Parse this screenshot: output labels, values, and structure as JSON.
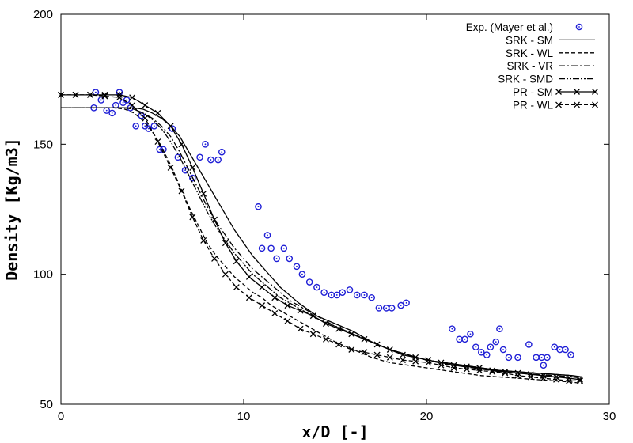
{
  "chart_data": {
    "type": "line",
    "xlabel": "x/D [-]",
    "ylabel": "Density [Kg/m3]",
    "xlim": [
      0,
      30
    ],
    "ylim": [
      50,
      200
    ],
    "x_ticks": [
      "0",
      "10",
      "20",
      "30"
    ],
    "y_ticks": [
      "50",
      "100",
      "150",
      "200"
    ],
    "grid": false,
    "legend_position": "top-right",
    "experimental": {
      "name": "Exp. (Mayer et al.)",
      "color": "#1f1fd6",
      "points": [
        [
          1.8,
          164
        ],
        [
          1.9,
          170
        ],
        [
          2.2,
          167
        ],
        [
          2.5,
          163
        ],
        [
          2.8,
          162
        ],
        [
          3.0,
          165
        ],
        [
          3.2,
          170
        ],
        [
          3.4,
          166
        ],
        [
          3.6,
          167
        ],
        [
          3.8,
          164
        ],
        [
          4.1,
          157
        ],
        [
          4.4,
          161
        ],
        [
          4.6,
          157
        ],
        [
          4.8,
          156
        ],
        [
          5.1,
          157
        ],
        [
          5.4,
          148
        ],
        [
          5.6,
          148
        ],
        [
          6.1,
          156
        ],
        [
          6.4,
          145
        ],
        [
          6.8,
          140
        ],
        [
          7.2,
          137
        ],
        [
          7.6,
          145
        ],
        [
          7.9,
          150
        ],
        [
          8.2,
          144
        ],
        [
          8.6,
          144
        ],
        [
          8.8,
          147
        ],
        [
          10.8,
          126
        ],
        [
          11.0,
          110
        ],
        [
          11.3,
          115
        ],
        [
          11.5,
          110
        ],
        [
          11.8,
          106
        ],
        [
          12.2,
          110
        ],
        [
          12.5,
          106
        ],
        [
          12.9,
          103
        ],
        [
          13.2,
          100
        ],
        [
          13.6,
          97
        ],
        [
          14.0,
          95
        ],
        [
          14.4,
          93
        ],
        [
          14.8,
          92
        ],
        [
          15.1,
          92
        ],
        [
          15.4,
          93
        ],
        [
          15.8,
          94
        ],
        [
          16.2,
          92
        ],
        [
          16.6,
          92
        ],
        [
          17.0,
          91
        ],
        [
          17.4,
          87
        ],
        [
          17.8,
          87
        ],
        [
          18.1,
          87
        ],
        [
          18.6,
          88
        ],
        [
          18.9,
          89
        ],
        [
          21.4,
          79
        ],
        [
          21.8,
          75
        ],
        [
          22.1,
          75
        ],
        [
          22.4,
          77
        ],
        [
          22.7,
          72
        ],
        [
          23.0,
          70
        ],
        [
          23.3,
          69
        ],
        [
          23.5,
          72
        ],
        [
          23.8,
          74
        ],
        [
          24.0,
          79
        ],
        [
          24.2,
          71
        ],
        [
          24.5,
          68
        ],
        [
          25.0,
          68
        ],
        [
          25.6,
          73
        ],
        [
          26.0,
          68
        ],
        [
          26.3,
          68
        ],
        [
          26.6,
          68
        ],
        [
          27.0,
          72
        ],
        [
          27.3,
          71
        ],
        [
          27.6,
          71
        ],
        [
          27.9,
          69
        ],
        [
          26.4,
          65
        ]
      ]
    },
    "series": [
      {
        "name": "SRK - SM",
        "style": "solid",
        "marker": "none",
        "x": [
          0,
          2,
          3,
          3.5,
          4,
          4.5,
          5,
          5.5,
          6,
          6.5,
          7,
          7.5,
          8,
          8.5,
          9,
          9.5,
          10,
          10.5,
          11,
          11.5,
          12,
          12.5,
          13,
          14,
          15,
          16,
          17,
          18,
          19,
          20,
          21,
          22,
          23,
          24,
          25,
          26,
          27,
          28,
          28.5
        ],
        "y": [
          164,
          164,
          164,
          164,
          164,
          163.5,
          162,
          160,
          157,
          153,
          147,
          141,
          135,
          129,
          123,
          117,
          112,
          107,
          103,
          99,
          95,
          92,
          89,
          84,
          81,
          78,
          74,
          71,
          69,
          67,
          66,
          65,
          64,
          63,
          62.5,
          62,
          61.5,
          61,
          60.5
        ]
      },
      {
        "name": "SRK - WL",
        "style": "dashed",
        "marker": "none",
        "x": [
          0,
          2,
          3,
          3.5,
          4,
          4.5,
          5,
          5.5,
          6,
          6.5,
          7,
          7.5,
          8,
          8.5,
          9,
          9.5,
          10,
          10.5,
          11,
          11.5,
          12,
          12.5,
          13,
          14,
          15,
          16,
          17,
          18,
          19,
          20,
          21,
          22,
          23,
          24,
          25,
          26,
          27,
          28,
          28.5
        ],
        "y": [
          164,
          164,
          164,
          163.5,
          162,
          159,
          155,
          149,
          142,
          134,
          126,
          119,
          112,
          107,
          103,
          99,
          96,
          93,
          91,
          88,
          86,
          84,
          82,
          78,
          74,
          71,
          68,
          66,
          65,
          64,
          63,
          62,
          61,
          60.5,
          60,
          59.5,
          59,
          58.5,
          58
        ]
      },
      {
        "name": "SRK - VR",
        "style": "dashdot",
        "marker": "none",
        "x": [
          0,
          2,
          3,
          3.5,
          4,
          4.5,
          5,
          5.5,
          6,
          6.5,
          7,
          7.5,
          8,
          8.5,
          9,
          9.5,
          10,
          10.5,
          11,
          11.5,
          12,
          12.5,
          13,
          14,
          15,
          16,
          17,
          18,
          19,
          20,
          21,
          22,
          23,
          24,
          25,
          26,
          27,
          28,
          28.5
        ],
        "y": [
          164,
          164,
          164,
          164,
          163.5,
          162,
          160,
          157,
          153,
          147,
          140,
          133,
          126,
          120,
          115,
          110,
          106,
          102,
          99,
          96,
          93,
          90,
          88,
          84,
          80,
          77,
          74,
          71,
          69,
          67,
          65.5,
          64.5,
          63.5,
          62.5,
          62,
          61.5,
          61,
          60.5,
          60
        ]
      },
      {
        "name": "SRK - SMD",
        "style": "dashdotdot",
        "marker": "none",
        "x": [
          0,
          2,
          3,
          3.5,
          4,
          4.5,
          5,
          5.5,
          6,
          6.5,
          7,
          7.5,
          8,
          8.5,
          9,
          9.5,
          10,
          10.5,
          11,
          11.5,
          12,
          12.5,
          13,
          14,
          15,
          16,
          17,
          18,
          19,
          20,
          21,
          22,
          23,
          24,
          25,
          26,
          27,
          28,
          28.5
        ],
        "y": [
          164,
          164,
          164,
          164,
          163.5,
          162,
          159.5,
          156,
          151,
          145,
          138,
          131,
          124,
          118,
          113,
          108,
          104,
          100,
          97,
          94,
          91,
          89,
          87,
          83,
          80,
          77,
          74,
          71,
          69,
          67,
          66,
          65,
          64,
          63,
          62.5,
          62,
          61.5,
          61,
          60.5
        ]
      },
      {
        "name": "PR - SM",
        "style": "solid",
        "marker": "x",
        "x": [
          0,
          0.8,
          1.6,
          2.4,
          3.2,
          3.9,
          4.6,
          5.3,
          6.0,
          6.6,
          7.2,
          7.8,
          8.4,
          9.0,
          9.6,
          10.3,
          11.0,
          11.7,
          12.4,
          13.1,
          13.8,
          14.5,
          15.2,
          15.9,
          16.6,
          17.3,
          18.0,
          18.7,
          19.4,
          20.1,
          20.8,
          21.5,
          22.2,
          22.9,
          23.6,
          24.3,
          25.0,
          25.7,
          26.4,
          27.1,
          27.8,
          28.4
        ],
        "y": [
          169,
          169,
          169,
          169,
          169,
          168,
          165,
          162,
          157,
          150,
          141,
          131,
          121,
          112,
          105,
          99,
          95,
          91,
          88,
          86,
          84,
          81,
          79,
          77,
          75,
          73,
          71,
          69,
          68,
          67,
          66,
          65,
          64.5,
          64,
          63,
          62.5,
          62,
          61.5,
          61,
          60.5,
          60,
          59.5
        ]
      },
      {
        "name": "PR - WL",
        "style": "dashed",
        "marker": "x",
        "x": [
          0,
          0.8,
          1.6,
          2.4,
          3.2,
          3.9,
          4.6,
          5.3,
          6.0,
          6.6,
          7.2,
          7.8,
          8.4,
          9.0,
          9.6,
          10.3,
          11.0,
          11.7,
          12.4,
          13.1,
          13.8,
          14.5,
          15.2,
          15.9,
          16.6,
          17.3,
          18.0,
          18.7,
          19.4,
          20.1,
          20.8,
          21.5,
          22.2,
          22.9,
          23.6,
          24.3,
          25.0,
          25.7,
          26.4,
          27.1,
          27.8,
          28.4
        ],
        "y": [
          169,
          169,
          169,
          168.5,
          168,
          165,
          160,
          151,
          141,
          132,
          122,
          113,
          106,
          100,
          95,
          91,
          88,
          85,
          82,
          79,
          77,
          75,
          73,
          71,
          70,
          69,
          68,
          67,
          66.5,
          66,
          65,
          64,
          63.5,
          63,
          62.5,
          62,
          61,
          60.5,
          60,
          59.5,
          59,
          59
        ]
      }
    ]
  }
}
